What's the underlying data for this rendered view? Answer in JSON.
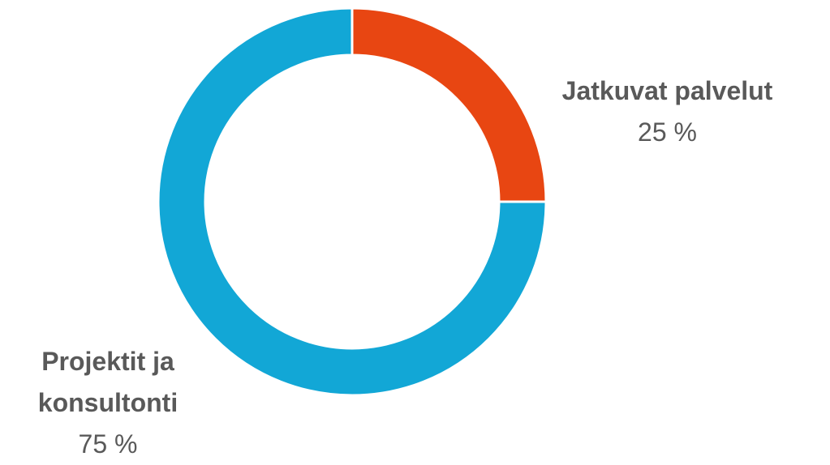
{
  "chart_data": {
    "type": "pie",
    "donut": true,
    "categories": [
      "Jatkuvat palvelut",
      "Projektit ja konsultonti"
    ],
    "values": [
      25,
      75
    ],
    "value_labels": [
      "25 %",
      "75 %"
    ],
    "colors": [
      "#e84612",
      "#12a7d6"
    ]
  }
}
